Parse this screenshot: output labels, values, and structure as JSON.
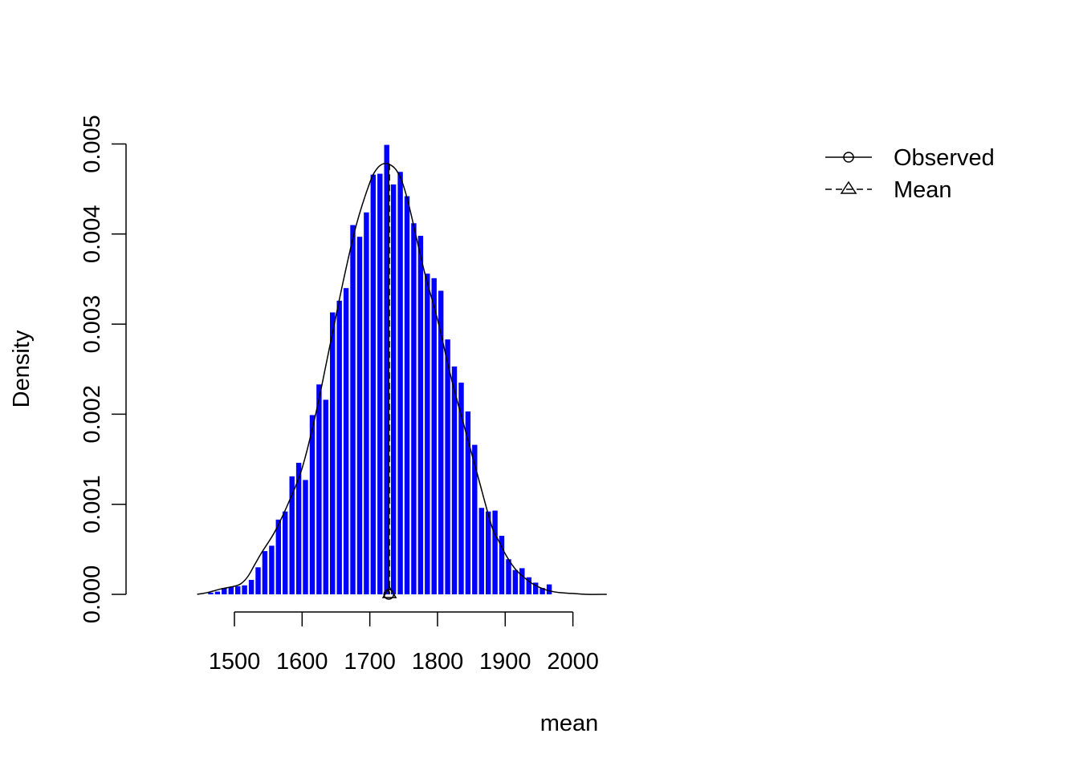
{
  "chart_data": {
    "type": "bar",
    "xlabel": "mean",
    "ylabel": "Density",
    "xlim": [
      1450,
      2050
    ],
    "ylim": [
      0,
      0.005
    ],
    "x_ticks": [
      1500,
      1600,
      1700,
      1800,
      1900,
      2000
    ],
    "x_tick_labels": [
      "1500",
      "1600",
      "1700",
      "1800",
      "1900",
      "2000"
    ],
    "y_ticks": [
      0,
      0.001,
      0.002,
      0.003,
      0.004,
      0.005
    ],
    "y_tick_labels": [
      "0.000",
      "0.001",
      "0.002",
      "0.003",
      "0.004",
      "0.005"
    ],
    "bin_width": 10,
    "bin_starts": [
      1460,
      1470,
      1480,
      1490,
      1500,
      1510,
      1520,
      1530,
      1540,
      1550,
      1560,
      1570,
      1580,
      1590,
      1600,
      1610,
      1620,
      1630,
      1640,
      1650,
      1660,
      1670,
      1680,
      1690,
      1700,
      1710,
      1720,
      1730,
      1740,
      1750,
      1760,
      1770,
      1780,
      1790,
      1800,
      1810,
      1820,
      1830,
      1840,
      1850,
      1860,
      1870,
      1880,
      1890,
      1900,
      1910,
      1920,
      1930,
      1940,
      1950,
      1960
    ],
    "densities": [
      2e-05,
      3e-05,
      7e-05,
      8e-05,
      9e-05,
      0.0001,
      0.00016,
      0.0003,
      0.00048,
      0.00054,
      0.00083,
      0.00092,
      0.00131,
      0.00146,
      0.00127,
      0.00199,
      0.00233,
      0.00216,
      0.00313,
      0.00326,
      0.0034,
      0.0041,
      0.00397,
      0.00424,
      0.00466,
      0.00467,
      0.00499,
      0.00455,
      0.00469,
      0.00442,
      0.00412,
      0.00398,
      0.00356,
      0.00351,
      0.00337,
      0.00283,
      0.00253,
      0.00235,
      0.00203,
      0.00166,
      0.00096,
      0.00092,
      0.00093,
      0.00065,
      0.00039,
      0.00027,
      0.00029,
      0.00019,
      0.00013,
      7e-05,
      0.00011
    ],
    "bar_color": "#0000ff",
    "density_curve": {
      "x": [
        1445,
        1460,
        1480,
        1500,
        1510,
        1520,
        1530,
        1540,
        1560,
        1580,
        1600,
        1620,
        1640,
        1660,
        1680,
        1700,
        1710,
        1720,
        1730,
        1740,
        1750,
        1760,
        1780,
        1800,
        1820,
        1840,
        1860,
        1880,
        1890,
        1900,
        1910,
        1920,
        1940,
        1960,
        1980,
        2000,
        2020,
        2050
      ],
      "y": [
        0,
        2e-05,
        6e-05,
        9e-05,
        0.00012,
        0.0002,
        0.00033,
        0.00046,
        0.0007,
        0.00102,
        0.0014,
        0.002,
        0.00272,
        0.00345,
        0.0041,
        0.00457,
        0.00472,
        0.00478,
        0.00477,
        0.0047,
        0.00453,
        0.00425,
        0.0036,
        0.00305,
        0.00241,
        0.00185,
        0.0013,
        0.00076,
        0.0006,
        0.00045,
        0.00033,
        0.00024,
        0.00012,
        5e-05,
        2e-05,
        1e-05,
        0.0,
        0.0
      ]
    },
    "observed_x": 1728,
    "mean_x": 1729,
    "legend": {
      "position": "top-right",
      "entries": [
        {
          "label": "Observed",
          "line": "solid",
          "marker": "circle"
        },
        {
          "label": "Mean",
          "line": "dashed",
          "marker": "triangle"
        }
      ]
    }
  }
}
